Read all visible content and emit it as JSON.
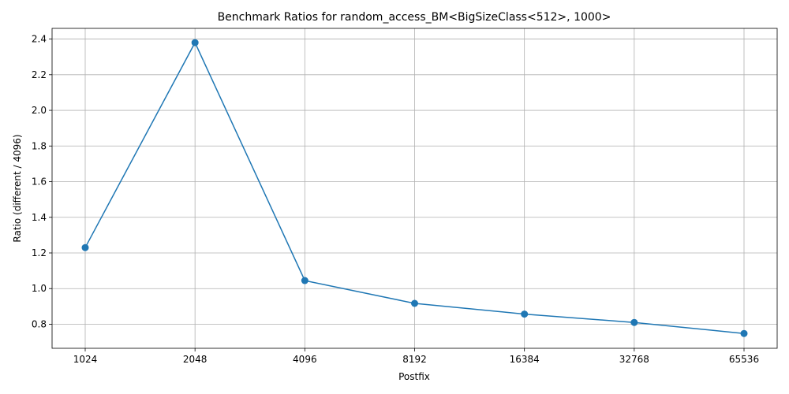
{
  "chart_data": {
    "type": "line",
    "title": "Benchmark Ratios for random_access_BM<BigSizeClass<512>, 1000>",
    "xlabel": "Postfix",
    "ylabel": "Ratio (different / 4096)",
    "categories": [
      "1024",
      "2048",
      "4096",
      "8192",
      "16384",
      "32768",
      "65536"
    ],
    "series": [
      {
        "values": [
          1.23,
          2.38,
          1.045,
          0.917,
          0.857,
          0.81,
          0.748
        ],
        "color": "#1f77b4",
        "marker": "circle"
      }
    ],
    "ylim": [
      0.665,
      2.46
    ],
    "yticks": [
      0.8,
      1.0,
      1.2,
      1.4,
      1.6,
      1.8,
      2.0,
      2.2,
      2.4
    ],
    "ytick_labels": [
      "0.8",
      "1.0",
      "1.2",
      "1.4",
      "1.6",
      "1.8",
      "2.0",
      "2.2",
      "2.4"
    ],
    "grid": true,
    "legend": "none"
  }
}
